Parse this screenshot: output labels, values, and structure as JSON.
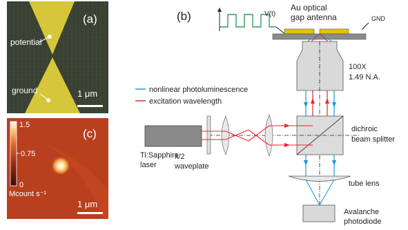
{
  "panel_a": {
    "label": "(a)",
    "potential": "potential",
    "ground": "ground",
    "scalebar": "1 μm"
  },
  "panel_c": {
    "label": "(c)",
    "colorbar_max": "1.5",
    "colorbar_mid": "0.75",
    "colorbar_min": "0",
    "colorbar_unit": "Mcount s⁻¹",
    "scalebar": "1 μm"
  },
  "panel_b": {
    "label": "(b)",
    "voltage": "V(t)",
    "antenna_line1": "Au optical",
    "antenna_line2": "gap antenna",
    "gnd": "GND",
    "objective_line1": "100X",
    "objective_line2": "1.49 N.A.",
    "legend_blue": "nonlinear photoluminescence",
    "legend_red": "excitation wavelength",
    "laser_line1": "Ti:Sapphire",
    "laser_line2": "laser",
    "waveplate_line1": "λ/2",
    "waveplate_line2": "waveplate",
    "splitter_line1": "dichroic",
    "splitter_line2": "beam splitter",
    "tube_lens": "tube lens",
    "detector_line1": "Avalanche",
    "detector_line2": "photodiode"
  },
  "colors": {
    "blue_beam": "#1a9ad6",
    "red_beam": "#e8232a",
    "gold": "#e6c200",
    "square_wave": "#2e9e5b"
  }
}
